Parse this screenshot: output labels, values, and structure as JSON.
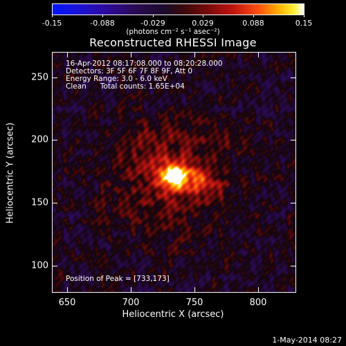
{
  "colorbar": {
    "ticks": [
      "-0.15",
      "-0.088",
      "-0.029",
      "0.029",
      "0.088",
      "0.15"
    ],
    "unit_label": "(photons cm⁻² s⁻¹ asec⁻²)"
  },
  "title": "Reconstructed RHESSI Image",
  "annotations": {
    "time_range": "16-Apr-2012 08:17:08.000 to 08:20:28.000",
    "detectors": "Detectors: 3F 5F 6F 7F 8F 9F, Att 0",
    "energy": "Energy Range: 3.0 - 6.0 keV",
    "method": "Clean      Total counts: 1.65E+04",
    "peak": "Position of Peak = [733,173]"
  },
  "axes": {
    "x_label": "Heliocentric X (arcsec)",
    "y_label": "Heliocentric Y (arcsec)",
    "x_ticks": [
      "650",
      "700",
      "750",
      "800"
    ],
    "y_ticks": [
      "250",
      "200",
      "150",
      "100"
    ]
  },
  "footer": "1-May-2014 08:27"
}
